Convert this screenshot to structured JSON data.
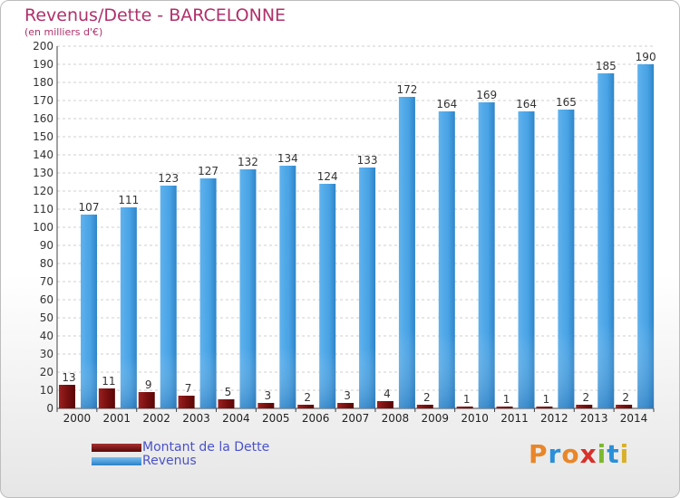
{
  "header": {
    "title": "Revenus/Dette - BARCELONNE",
    "subtitle": "(en milliers d'€)"
  },
  "legend": {
    "items": [
      {
        "label": "Montant de la Dette",
        "color": "#7a1010"
      },
      {
        "label": "Revenus",
        "color": "#4aa3e6"
      }
    ]
  },
  "logo": {
    "text": "Proxiti",
    "colors": [
      "#e8862a",
      "#2a8fd8",
      "#e8862a",
      "#d8302a",
      "#7cb82f",
      "#2a8fd8",
      "#d8b02a"
    ]
  },
  "chart_data": {
    "type": "bar",
    "title": "Revenus/Dette - BARCELONNE",
    "subtitle": "(en milliers d'€)",
    "xlabel": "",
    "ylabel": "",
    "categories": [
      "2000",
      "2001",
      "2002",
      "2003",
      "2004",
      "2005",
      "2006",
      "2007",
      "2008",
      "2009",
      "2010",
      "2011",
      "2012",
      "2013",
      "2014"
    ],
    "series": [
      {
        "name": "Montant de la Dette",
        "color": "#7a1010",
        "values": [
          13,
          11,
          9,
          7,
          5,
          3,
          2,
          3,
          4,
          2,
          1,
          1,
          1,
          2,
          2
        ]
      },
      {
        "name": "Revenus",
        "color": "#4aa3e6",
        "values": [
          107,
          111,
          123,
          127,
          132,
          134,
          124,
          133,
          172,
          164,
          169,
          164,
          165,
          185,
          190
        ]
      }
    ],
    "ylim": [
      0,
      200
    ],
    "yticks": [
      0,
      10,
      20,
      30,
      40,
      50,
      60,
      70,
      80,
      90,
      100,
      110,
      120,
      130,
      140,
      150,
      160,
      170,
      180,
      190,
      200
    ],
    "grid": true,
    "legend_position": "bottom-left"
  }
}
